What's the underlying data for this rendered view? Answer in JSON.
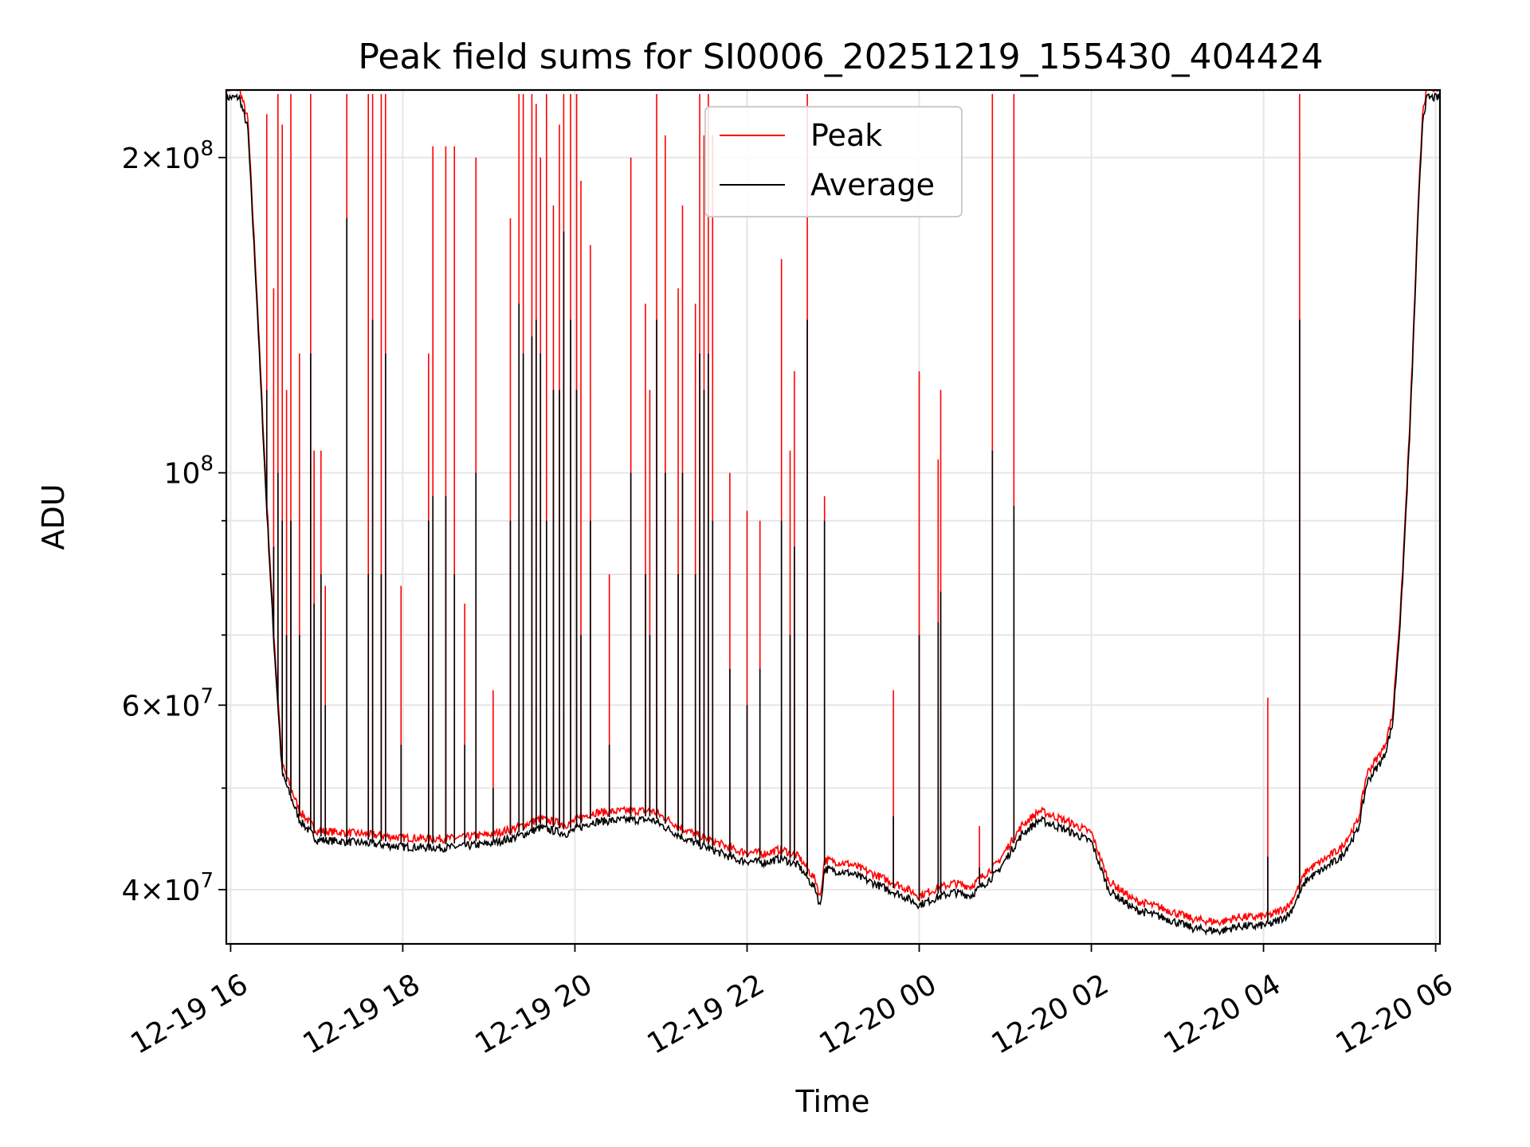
{
  "chart_data": {
    "type": "line",
    "title": "Peak field sums for SI0006_20251219_155430_404424",
    "xlabel": "Time",
    "ylabel": "ADU",
    "yscale": "log",
    "xlim_hours": [
      15.95,
      30.05
    ],
    "ylim": [
      35500000,
      232000000
    ],
    "grid": true,
    "legend_position": "top-center",
    "x_ticks": [
      {
        "h": 16,
        "label": "12-19 16"
      },
      {
        "h": 18,
        "label": "12-19 18"
      },
      {
        "h": 20,
        "label": "12-19 20"
      },
      {
        "h": 22,
        "label": "12-19 22"
      },
      {
        "h": 24,
        "label": "12-20 00"
      },
      {
        "h": 26,
        "label": "12-20 02"
      },
      {
        "h": 28,
        "label": "12-20 04"
      },
      {
        "h": 30,
        "label": "12-20 06"
      }
    ],
    "y_major_ticks": [
      {
        "v": 40000000,
        "mant": "4",
        "exp": "7"
      },
      {
        "v": 60000000,
        "mant": "6",
        "exp": "7"
      },
      {
        "v": 100000000,
        "mant": "",
        "exp": "8"
      },
      {
        "v": 200000000,
        "mant": "2",
        "exp": "8"
      }
    ],
    "y_minor_grid": [
      50000000,
      70000000,
      80000000,
      90000000
    ],
    "series": [
      {
        "name": "Peak",
        "color": "#ff0000"
      },
      {
        "name": "Average",
        "color": "#000000"
      }
    ],
    "baseline_h": [
      15.95,
      16.1,
      16.2,
      16.3,
      16.4,
      16.5,
      16.6,
      16.8,
      17.0,
      17.5,
      18.0,
      18.5,
      19.0,
      19.3,
      19.6,
      19.9,
      20.2,
      20.6,
      20.9,
      21.3,
      21.6,
      21.9,
      22.2,
      22.4,
      22.6,
      22.8,
      22.85,
      22.9,
      23.2,
      23.5,
      23.8,
      24.0,
      24.2,
      24.4,
      24.6,
      24.9,
      25.2,
      25.4,
      25.7,
      26.0,
      26.2,
      26.5,
      26.8,
      27.2,
      27.5,
      27.7,
      27.9,
      28.1,
      28.3,
      28.5,
      28.7,
      28.9,
      29.1,
      29.2,
      29.3,
      29.4,
      29.5,
      29.6,
      29.7,
      29.8,
      29.85,
      29.9,
      30.05
    ],
    "baseline_v": [
      230000000,
      230000000,
      215000000,
      150000000,
      100000000,
      70000000,
      52000000,
      47000000,
      45000000,
      44700000,
      44300000,
      44200000,
      44600000,
      45200000,
      46200000,
      45600000,
      46800000,
      47000000,
      47000000,
      45000000,
      44000000,
      43000000,
      42800000,
      43200000,
      42500000,
      40300000,
      38800000,
      42200000,
      41800000,
      40800000,
      39800000,
      39000000,
      39600000,
      40100000,
      39800000,
      41800000,
      45600000,
      47000000,
      46000000,
      44800000,
      40300000,
      38600000,
      38000000,
      37000000,
      36800000,
      37200000,
      37200000,
      37400000,
      38200000,
      41200000,
      42200000,
      43300000,
      46000000,
      51000000,
      52500000,
      54000000,
      58000000,
      75000000,
      110000000,
      180000000,
      220000000,
      230000000,
      230000000
    ],
    "spikes_h": [
      16.42,
      16.5,
      16.55,
      16.6,
      16.65,
      16.7,
      16.8,
      16.93,
      16.97,
      17.05,
      17.1,
      17.35,
      17.6,
      17.65,
      17.75,
      17.8,
      17.98,
      18.3,
      18.35,
      18.5,
      18.6,
      18.72,
      18.85,
      19.05,
      19.25,
      19.35,
      19.4,
      19.5,
      19.55,
      19.6,
      19.67,
      19.75,
      19.82,
      19.87,
      19.95,
      20.02,
      20.07,
      20.18,
      20.4,
      20.65,
      20.82,
      20.87,
      20.95,
      21.05,
      21.2,
      21.25,
      21.4,
      21.45,
      21.5,
      21.55,
      21.6,
      21.8,
      22.0,
      22.15,
      22.4,
      22.5,
      22.55,
      22.7,
      22.9,
      23.7,
      24.0,
      24.22,
      24.25,
      24.7,
      24.85,
      25.1,
      28.05,
      28.42
    ],
    "spikes_peak": [
      220000000,
      150000000,
      230000000,
      215000000,
      120000000,
      230000000,
      130000000,
      230000000,
      105000000,
      105000000,
      78000000,
      230000000,
      230000000,
      230000000,
      230000000,
      230000000,
      78000000,
      130000000,
      205000000,
      205000000,
      205000000,
      75000000,
      200000000,
      62000000,
      175000000,
      230000000,
      230000000,
      230000000,
      225000000,
      200000000,
      230000000,
      180000000,
      215000000,
      230000000,
      230000000,
      230000000,
      190000000,
      165000000,
      80000000,
      200000000,
      145000000,
      120000000,
      230000000,
      210000000,
      150000000,
      180000000,
      145000000,
      230000000,
      210000000,
      230000000,
      210000000,
      100000000,
      92000000,
      90000000,
      160000000,
      105000000,
      125000000,
      230000000,
      95000000,
      62000000,
      125000000,
      103000000,
      120000000,
      46000000,
      230000000,
      230000000,
      61000000,
      230000000
    ],
    "spikes_avg": [
      120000000,
      85000000,
      100000000,
      90000000,
      70000000,
      90000000,
      70000000,
      130000000,
      75000000,
      80000000,
      60000000,
      175000000,
      80000000,
      140000000,
      80000000,
      130000000,
      55000000,
      90000000,
      95000000,
      95000000,
      80000000,
      55000000,
      100000000,
      50000000,
      90000000,
      145000000,
      130000000,
      135000000,
      140000000,
      130000000,
      90000000,
      120000000,
      120000000,
      170000000,
      140000000,
      120000000,
      70000000,
      90000000,
      55000000,
      100000000,
      80000000,
      70000000,
      140000000,
      100000000,
      80000000,
      100000000,
      80000000,
      130000000,
      120000000,
      130000000,
      90000000,
      65000000,
      60000000,
      65000000,
      90000000,
      70000000,
      85000000,
      140000000,
      90000000,
      47000000,
      70000000,
      72000000,
      77000000,
      42000000,
      105000000,
      93000000,
      43000000,
      140000000
    ]
  }
}
